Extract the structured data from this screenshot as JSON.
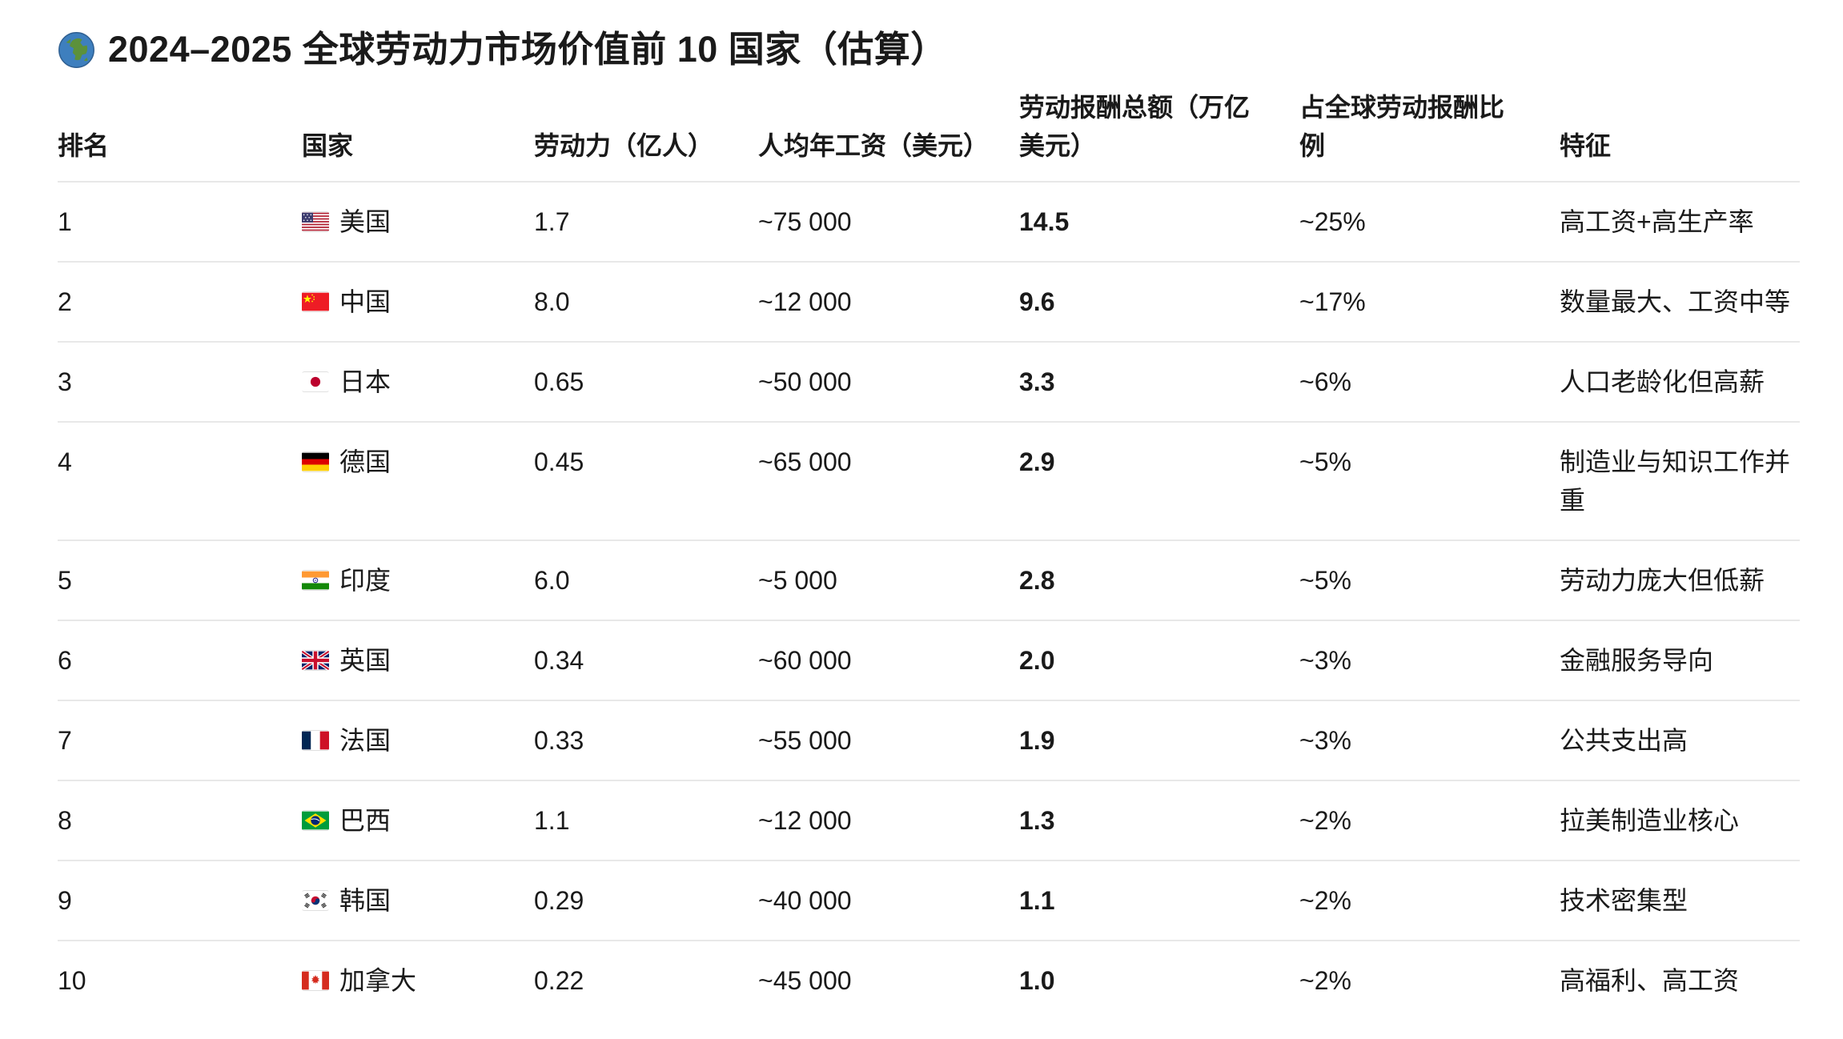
{
  "page": {
    "title": "2024–2025 全球劳动力市场价值前 10 国家（估算）",
    "title_icon": "globe-showing-europe-africa",
    "background_color": "#ffffff",
    "text_color": "#1a1a1a",
    "divider_color": "#e8e8e8"
  },
  "table": {
    "columns": [
      {
        "label": "排名"
      },
      {
        "label": "国家"
      },
      {
        "label": "劳动力（亿人）"
      },
      {
        "label": "人均年工资（美元）"
      },
      {
        "label": "劳动报酬总额（万亿美元）"
      },
      {
        "label": "占全球劳动报酬比例"
      },
      {
        "label": "特征"
      }
    ],
    "rows": [
      {
        "rank": "1",
        "flag": "us",
        "country": "美国",
        "labor_force": "1.7",
        "avg_annual_wage": "~75 000",
        "total_compensation": "14.5",
        "global_share": "~25%",
        "feature": "高工资+高生产率"
      },
      {
        "rank": "2",
        "flag": "cn",
        "country": "中国",
        "labor_force": "8.0",
        "avg_annual_wage": "~12 000",
        "total_compensation": "9.6",
        "global_share": "~17%",
        "feature": "数量最大、工资中等"
      },
      {
        "rank": "3",
        "flag": "jp",
        "country": "日本",
        "labor_force": "0.65",
        "avg_annual_wage": "~50 000",
        "total_compensation": "3.3",
        "global_share": "~6%",
        "feature": "人口老龄化但高薪"
      },
      {
        "rank": "4",
        "flag": "de",
        "country": "德国",
        "labor_force": "0.45",
        "avg_annual_wage": "~65 000",
        "total_compensation": "2.9",
        "global_share": "~5%",
        "feature": "制造业与知识工作并重"
      },
      {
        "rank": "5",
        "flag": "in",
        "country": "印度",
        "labor_force": "6.0",
        "avg_annual_wage": "~5 000",
        "total_compensation": "2.8",
        "global_share": "~5%",
        "feature": "劳动力庞大但低薪"
      },
      {
        "rank": "6",
        "flag": "gb",
        "country": "英国",
        "labor_force": "0.34",
        "avg_annual_wage": "~60 000",
        "total_compensation": "2.0",
        "global_share": "~3%",
        "feature": "金融服务导向"
      },
      {
        "rank": "7",
        "flag": "fr",
        "country": "法国",
        "labor_force": "0.33",
        "avg_annual_wage": "~55 000",
        "total_compensation": "1.9",
        "global_share": "~3%",
        "feature": "公共支出高"
      },
      {
        "rank": "8",
        "flag": "br",
        "country": "巴西",
        "labor_force": "1.1",
        "avg_annual_wage": "~12 000",
        "total_compensation": "1.3",
        "global_share": "~2%",
        "feature": "拉美制造业核心"
      },
      {
        "rank": "9",
        "flag": "kr",
        "country": "韩国",
        "labor_force": "0.29",
        "avg_annual_wage": "~40 000",
        "total_compensation": "1.1",
        "global_share": "~2%",
        "feature": "技术密集型"
      },
      {
        "rank": "10",
        "flag": "ca",
        "country": "加拿大",
        "labor_force": "0.22",
        "avg_annual_wage": "~45 000",
        "total_compensation": "1.0",
        "global_share": "~2%",
        "feature": "高福利、高工资"
      }
    ]
  }
}
